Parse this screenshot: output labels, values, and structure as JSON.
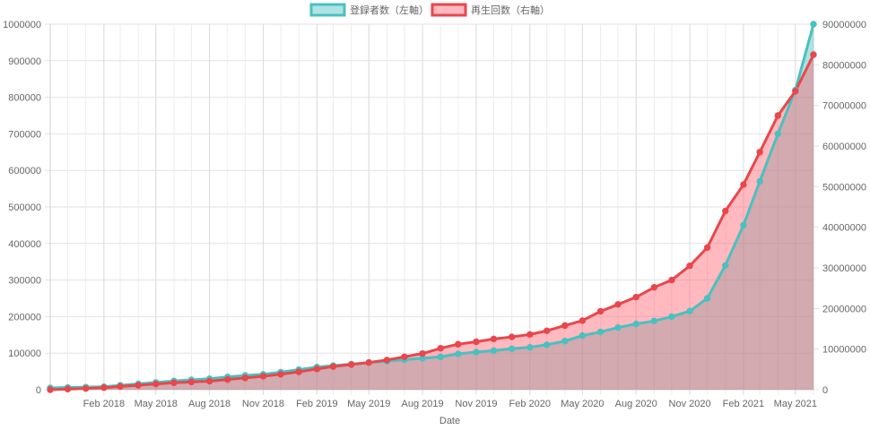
{
  "chart_data": {
    "type": "line",
    "title": "",
    "xlabel": "Date",
    "ylabel": "",
    "y2label": "",
    "x_ticks": [
      "Feb 2018",
      "May 2018",
      "Aug 2018",
      "Nov 2018",
      "Feb 2019",
      "May 2019",
      "Aug 2019",
      "Nov 2019",
      "Feb 2020",
      "May 2020",
      "Aug 2020",
      "Nov 2020",
      "Feb 2021",
      "May 2021"
    ],
    "y_left_ticks": [
      "0",
      "100000",
      "200000",
      "300000",
      "400000",
      "500000",
      "600000",
      "700000",
      "800000",
      "900000",
      "1000000"
    ],
    "y_right_ticks": [
      "0",
      "10000000",
      "20000000",
      "30000000",
      "40000000",
      "50000000",
      "60000000",
      "70000000",
      "80000000",
      "90000000"
    ],
    "ylim_left": [
      0,
      1000000
    ],
    "ylim_right": [
      0,
      90000000
    ],
    "x_range": [
      "2017-11-01",
      "2021-06-01"
    ],
    "grid": true,
    "legend_position": "top",
    "series": [
      {
        "name": "登録者数（左軸）",
        "axis": "left",
        "color": "#4bc0c0",
        "fill": "rgba(75,192,192,0.45)",
        "points": [
          [
            "2017-11-01",
            5000
          ],
          [
            "2017-12-01",
            6000
          ],
          [
            "2018-01-01",
            7000
          ],
          [
            "2018-02-01",
            8000
          ],
          [
            "2018-03-01",
            12000
          ],
          [
            "2018-04-01",
            16000
          ],
          [
            "2018-05-01",
            20000
          ],
          [
            "2018-06-01",
            24000
          ],
          [
            "2018-07-01",
            27000
          ],
          [
            "2018-08-01",
            30000
          ],
          [
            "2018-09-01",
            35000
          ],
          [
            "2018-10-01",
            39000
          ],
          [
            "2018-11-01",
            42000
          ],
          [
            "2018-12-01",
            48000
          ],
          [
            "2019-01-01",
            55000
          ],
          [
            "2019-02-01",
            62000
          ],
          [
            "2019-03-01",
            66000
          ],
          [
            "2019-04-01",
            70000
          ],
          [
            "2019-05-01",
            74000
          ],
          [
            "2019-06-01",
            78000
          ],
          [
            "2019-07-01",
            82000
          ],
          [
            "2019-08-01",
            86000
          ],
          [
            "2019-09-01",
            90000
          ],
          [
            "2019-10-01",
            98000
          ],
          [
            "2019-11-01",
            103000
          ],
          [
            "2019-12-01",
            107000
          ],
          [
            "2020-01-01",
            112000
          ],
          [
            "2020-02-01",
            116000
          ],
          [
            "2020-03-01",
            123000
          ],
          [
            "2020-04-01",
            133000
          ],
          [
            "2020-05-01",
            148000
          ],
          [
            "2020-06-01",
            158000
          ],
          [
            "2020-07-01",
            170000
          ],
          [
            "2020-08-01",
            180000
          ],
          [
            "2020-09-01",
            188000
          ],
          [
            "2020-10-01",
            200000
          ],
          [
            "2020-11-01",
            215000
          ],
          [
            "2020-12-01",
            250000
          ],
          [
            "2021-01-01",
            340000
          ],
          [
            "2021-02-01",
            450000
          ],
          [
            "2021-03-01",
            570000
          ],
          [
            "2021-04-01",
            700000
          ],
          [
            "2021-05-01",
            820000
          ],
          [
            "2021-06-01",
            1000000
          ]
        ]
      },
      {
        "name": "再生回数（右軸）",
        "axis": "right",
        "color": "#e8474b",
        "fill": "rgba(255,99,112,0.45)",
        "points": [
          [
            "2017-11-01",
            0
          ],
          [
            "2017-12-01",
            150000
          ],
          [
            "2018-01-01",
            300000
          ],
          [
            "2018-02-01",
            500000
          ],
          [
            "2018-03-01",
            800000
          ],
          [
            "2018-04-01",
            1100000
          ],
          [
            "2018-05-01",
            1400000
          ],
          [
            "2018-06-01",
            1700000
          ],
          [
            "2018-07-01",
            1900000
          ],
          [
            "2018-08-01",
            2100000
          ],
          [
            "2018-09-01",
            2500000
          ],
          [
            "2018-10-01",
            2900000
          ],
          [
            "2018-11-01",
            3300000
          ],
          [
            "2018-12-01",
            3800000
          ],
          [
            "2019-01-01",
            4400000
          ],
          [
            "2019-02-01",
            5100000
          ],
          [
            "2019-03-01",
            5700000
          ],
          [
            "2019-04-01",
            6200000
          ],
          [
            "2019-05-01",
            6700000
          ],
          [
            "2019-06-01",
            7300000
          ],
          [
            "2019-07-01",
            8100000
          ],
          [
            "2019-08-01",
            8900000
          ],
          [
            "2019-09-01",
            10200000
          ],
          [
            "2019-10-01",
            11200000
          ],
          [
            "2019-11-01",
            11800000
          ],
          [
            "2019-12-01",
            12500000
          ],
          [
            "2020-01-01",
            13000000
          ],
          [
            "2020-02-01",
            13600000
          ],
          [
            "2020-03-01",
            14500000
          ],
          [
            "2020-04-01",
            15800000
          ],
          [
            "2020-05-01",
            17000000
          ],
          [
            "2020-06-01",
            19300000
          ],
          [
            "2020-07-01",
            21000000
          ],
          [
            "2020-08-01",
            22800000
          ],
          [
            "2020-09-01",
            25200000
          ],
          [
            "2020-10-01",
            27000000
          ],
          [
            "2020-11-01",
            30500000
          ],
          [
            "2020-12-01",
            35000000
          ],
          [
            "2021-01-01",
            44000000
          ],
          [
            "2021-02-01",
            50500000
          ],
          [
            "2021-03-01",
            58500000
          ],
          [
            "2021-04-01",
            67500000
          ],
          [
            "2021-05-01",
            73500000
          ],
          [
            "2021-06-01",
            82500000
          ]
        ]
      }
    ]
  }
}
